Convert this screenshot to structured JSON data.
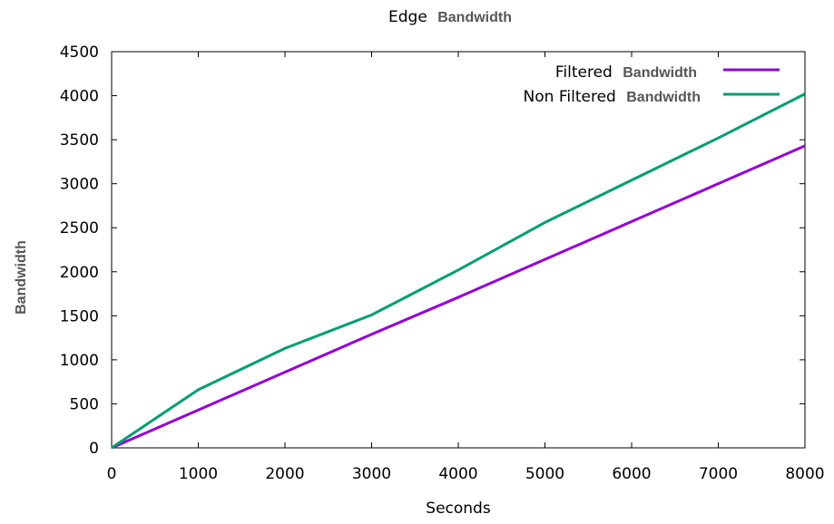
{
  "chart_data": {
    "type": "line",
    "title": {
      "prefix": "Edge",
      "emphasis": "Bandwidth"
    },
    "xlabel": "Seconds",
    "ylabel": "Bandwidth",
    "xlim": [
      0,
      8000
    ],
    "ylim": [
      0,
      4500
    ],
    "xticks": [
      0,
      1000,
      2000,
      3000,
      4000,
      5000,
      6000,
      7000,
      8000
    ],
    "yticks": [
      0,
      500,
      1000,
      1500,
      2000,
      2500,
      3000,
      3500,
      4000,
      4500
    ],
    "grid": false,
    "legend_position": "top-right",
    "series": [
      {
        "name_prefix": "Filtered",
        "name_emphasis": "Bandwidth",
        "color": "#9400d3",
        "x": [
          0,
          1000,
          2000,
          3000,
          4000,
          5000,
          6000,
          7000,
          8000
        ],
        "y": [
          0,
          430,
          860,
          1290,
          1710,
          2140,
          2570,
          3000,
          3430
        ]
      },
      {
        "name_prefix": "Non Filtered",
        "name_emphasis": "Bandwidth",
        "color": "#009e73",
        "x": [
          0,
          1000,
          2000,
          3000,
          4000,
          5000,
          6000,
          7000,
          8000
        ],
        "y": [
          0,
          660,
          1130,
          1510,
          2020,
          2560,
          3040,
          3520,
          4020
        ]
      }
    ]
  }
}
